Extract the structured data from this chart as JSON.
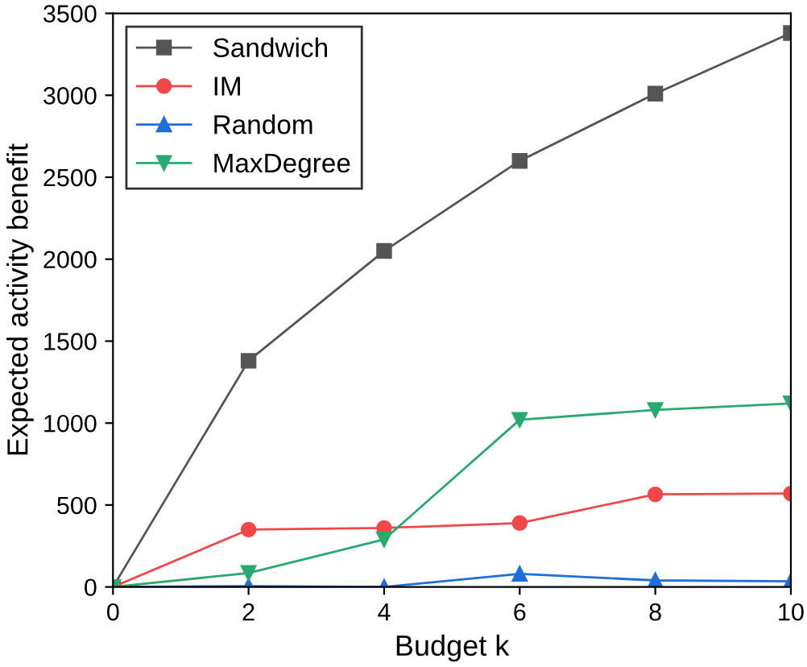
{
  "chart_data": {
    "type": "line",
    "xlabel": "Budget k",
    "ylabel": "Expected activity benefit",
    "x": [
      0,
      2,
      4,
      6,
      8,
      10
    ],
    "series": [
      {
        "name": "Sandwich",
        "color": "#555555",
        "marker": "square",
        "values": [
          0,
          1380,
          2050,
          2600,
          3010,
          3380
        ]
      },
      {
        "name": "IM",
        "color": "#f04848",
        "marker": "circle",
        "values": [
          0,
          350,
          360,
          390,
          565,
          570
        ]
      },
      {
        "name": "Random",
        "color": "#1f6fd8",
        "marker": "triangle",
        "values": [
          0,
          5,
          0,
          80,
          40,
          35
        ]
      },
      {
        "name": "MaxDegree",
        "color": "#2aa870",
        "marker": "triangle down",
        "values": [
          0,
          85,
          290,
          1020,
          1080,
          1120
        ]
      }
    ],
    "xlim": [
      0,
      10
    ],
    "ylim": [
      0,
      3500
    ],
    "xticks": [
      0,
      2,
      4,
      6,
      8,
      10
    ],
    "yticks": [
      0,
      500,
      1000,
      1500,
      2000,
      2500,
      3000,
      3500
    ],
    "grid": false,
    "legend": "top left",
    "line_style": "solid"
  }
}
